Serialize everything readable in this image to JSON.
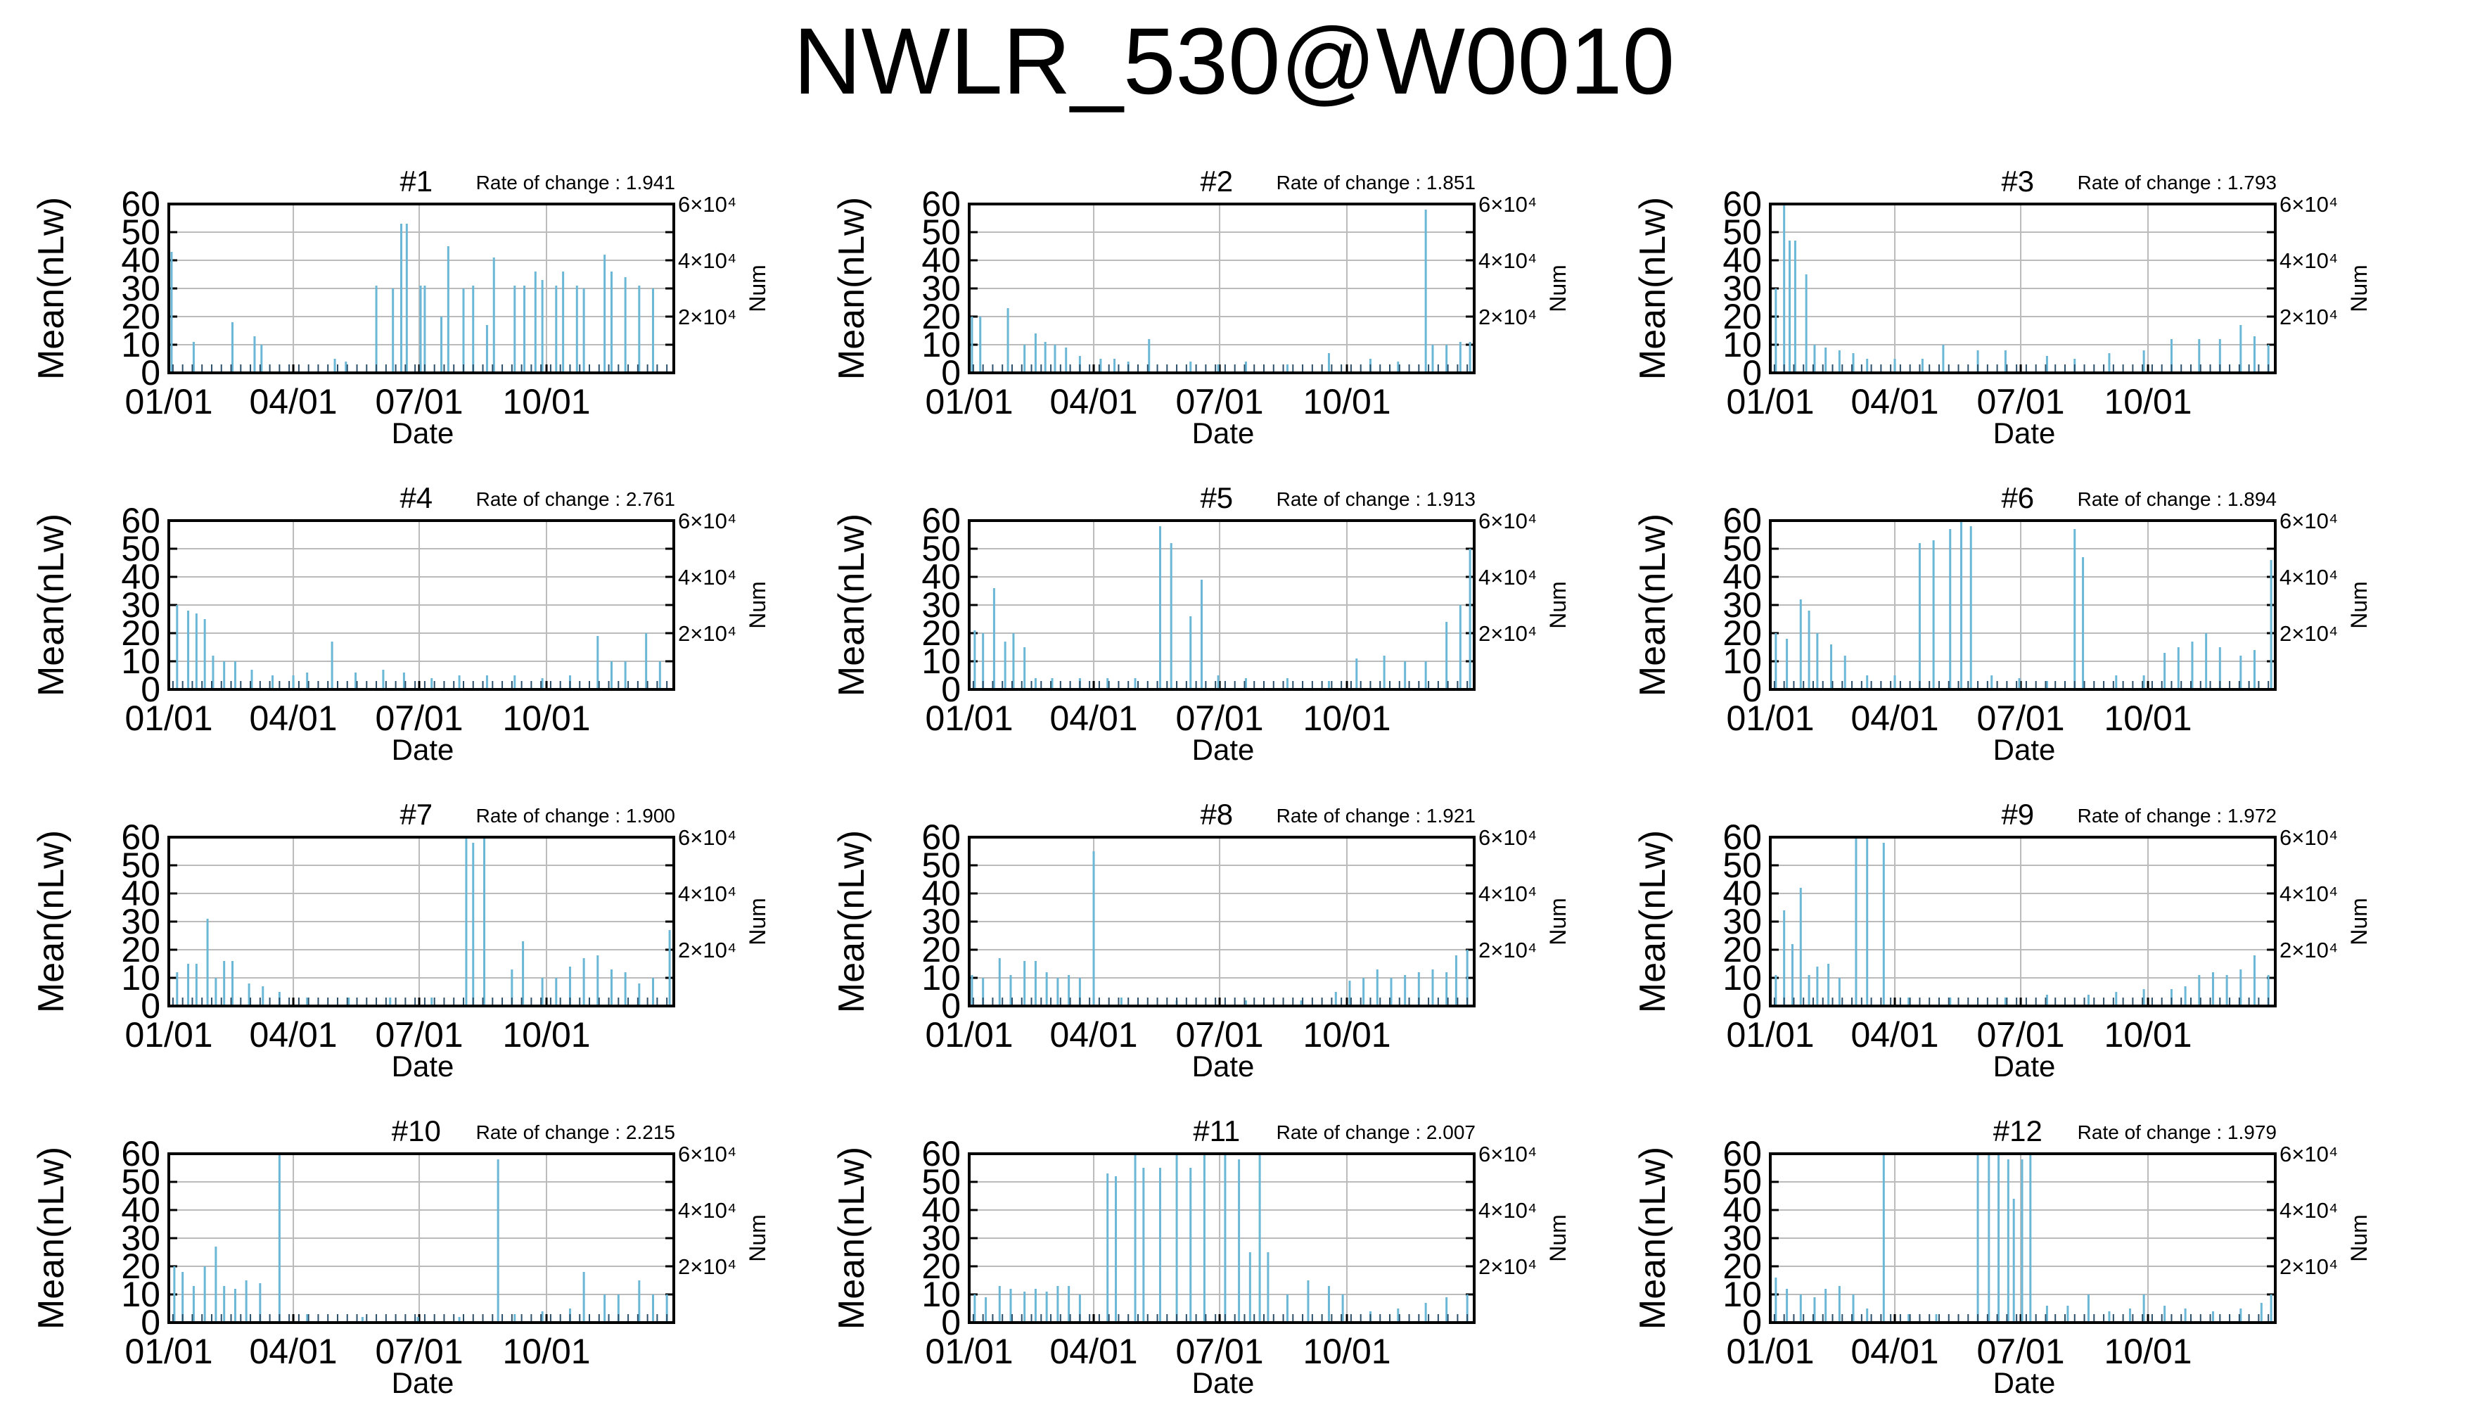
{
  "title": "NWLR_530@W0010",
  "colors": {
    "bar": "#6bb7d6",
    "dark": "#2c4f6a",
    "grid": "#bbbbbb",
    "axis": "#000000"
  },
  "shared": {
    "ylabel": "Mean(nLw)",
    "xlabel": "Date",
    "y2label": "Num",
    "y_ticks": [
      "0",
      "10",
      "20",
      "30",
      "40",
      "50",
      "60"
    ],
    "x_ticks": [
      "01/01",
      "04/01",
      "07/01",
      "10/01"
    ],
    "y2_ticks": [
      "2×10⁴",
      "4×10⁴",
      "6×10⁴"
    ],
    "rate_prefix": "Rate of change : "
  },
  "chart_data": [
    {
      "type": "bar",
      "name": "#1",
      "rate": "1.941",
      "xlim": [
        0,
        365
      ],
      "ylim": [
        0,
        60
      ],
      "y2lim": [
        0,
        60000
      ],
      "spikes": [
        [
          2,
          43
        ],
        [
          18,
          11
        ],
        [
          46,
          18
        ],
        [
          62,
          13
        ],
        [
          67,
          10
        ],
        [
          120,
          5
        ],
        [
          128,
          4
        ],
        [
          150,
          31
        ],
        [
          162,
          30
        ],
        [
          168,
          53
        ],
        [
          172,
          53
        ],
        [
          182,
          31
        ],
        [
          185,
          31
        ],
        [
          197,
          20
        ],
        [
          202,
          45
        ],
        [
          213,
          30
        ],
        [
          220,
          31
        ],
        [
          230,
          17
        ],
        [
          235,
          41
        ],
        [
          250,
          31
        ],
        [
          257,
          31
        ],
        [
          265,
          36
        ],
        [
          270,
          33
        ],
        [
          280,
          31
        ],
        [
          285,
          36
        ],
        [
          295,
          31
        ],
        [
          300,
          30
        ],
        [
          315,
          42
        ],
        [
          320,
          36
        ],
        [
          330,
          34
        ],
        [
          340,
          31
        ],
        [
          350,
          30
        ]
      ]
    },
    {
      "type": "bar",
      "name": "#2",
      "rate": "1.851",
      "xlim": [
        0,
        365
      ],
      "ylim": [
        0,
        60
      ],
      "y2lim": [
        0,
        60000
      ],
      "spikes": [
        [
          2,
          20
        ],
        [
          8,
          20
        ],
        [
          28,
          23
        ],
        [
          40,
          10
        ],
        [
          48,
          14
        ],
        [
          55,
          11
        ],
        [
          62,
          10
        ],
        [
          70,
          9
        ],
        [
          80,
          6
        ],
        [
          95,
          5
        ],
        [
          105,
          5
        ],
        [
          115,
          4
        ],
        [
          130,
          12
        ],
        [
          160,
          4
        ],
        [
          180,
          3
        ],
        [
          200,
          4
        ],
        [
          230,
          3
        ],
        [
          260,
          7
        ],
        [
          290,
          5
        ],
        [
          310,
          4
        ],
        [
          330,
          58
        ],
        [
          335,
          10
        ],
        [
          345,
          10
        ],
        [
          355,
          11
        ],
        [
          362,
          11
        ]
      ]
    },
    {
      "type": "bar",
      "name": "#3",
      "rate": "1.793",
      "xlim": [
        0,
        365
      ],
      "ylim": [
        0,
        60
      ],
      "y2lim": [
        0,
        60000
      ],
      "spikes": [
        [
          4,
          30
        ],
        [
          10,
          60
        ],
        [
          14,
          47
        ],
        [
          18,
          47
        ],
        [
          26,
          35
        ],
        [
          32,
          10
        ],
        [
          40,
          9
        ],
        [
          50,
          8
        ],
        [
          60,
          7
        ],
        [
          70,
          5
        ],
        [
          90,
          5
        ],
        [
          110,
          5
        ],
        [
          125,
          10
        ],
        [
          150,
          8
        ],
        [
          170,
          8
        ],
        [
          200,
          6
        ],
        [
          220,
          5
        ],
        [
          245,
          7
        ],
        [
          270,
          8
        ],
        [
          290,
          12
        ],
        [
          310,
          12
        ],
        [
          325,
          12
        ],
        [
          340,
          17
        ],
        [
          350,
          13
        ],
        [
          360,
          10
        ]
      ]
    },
    {
      "type": "bar",
      "name": "#4",
      "rate": "2.761",
      "xlim": [
        0,
        365
      ],
      "ylim": [
        0,
        60
      ],
      "y2lim": [
        0,
        60000
      ],
      "spikes": [
        [
          6,
          30
        ],
        [
          14,
          28
        ],
        [
          20,
          27
        ],
        [
          26,
          25
        ],
        [
          32,
          12
        ],
        [
          40,
          10
        ],
        [
          48,
          10
        ],
        [
          60,
          7
        ],
        [
          75,
          5
        ],
        [
          90,
          5
        ],
        [
          100,
          6
        ],
        [
          118,
          17
        ],
        [
          135,
          6
        ],
        [
          155,
          7
        ],
        [
          170,
          6
        ],
        [
          190,
          4
        ],
        [
          210,
          5
        ],
        [
          230,
          5
        ],
        [
          250,
          5
        ],
        [
          270,
          4
        ],
        [
          290,
          5
        ],
        [
          310,
          19
        ],
        [
          320,
          10
        ],
        [
          330,
          10
        ],
        [
          345,
          20
        ],
        [
          355,
          10
        ]
      ]
    },
    {
      "type": "bar",
      "name": "#5",
      "rate": "1.913",
      "xlim": [
        0,
        365
      ],
      "ylim": [
        0,
        60
      ],
      "y2lim": [
        0,
        60000
      ],
      "spikes": [
        [
          4,
          21
        ],
        [
          10,
          20
        ],
        [
          18,
          36
        ],
        [
          26,
          17
        ],
        [
          32,
          20
        ],
        [
          40,
          15
        ],
        [
          48,
          4
        ],
        [
          60,
          4
        ],
        [
          80,
          4
        ],
        [
          100,
          4
        ],
        [
          120,
          4
        ],
        [
          138,
          58
        ],
        [
          146,
          52
        ],
        [
          160,
          26
        ],
        [
          168,
          39
        ],
        [
          180,
          5
        ],
        [
          200,
          4
        ],
        [
          230,
          4
        ],
        [
          260,
          3
        ],
        [
          280,
          11
        ],
        [
          300,
          12
        ],
        [
          315,
          10
        ],
        [
          330,
          10
        ],
        [
          345,
          24
        ],
        [
          355,
          30
        ],
        [
          362,
          50
        ]
      ]
    },
    {
      "type": "bar",
      "name": "#6",
      "rate": "1.894",
      "xlim": [
        0,
        365
      ],
      "ylim": [
        0,
        60
      ],
      "y2lim": [
        0,
        60000
      ],
      "spikes": [
        [
          4,
          20
        ],
        [
          12,
          18
        ],
        [
          22,
          32
        ],
        [
          28,
          28
        ],
        [
          34,
          20
        ],
        [
          44,
          16
        ],
        [
          54,
          12
        ],
        [
          70,
          5
        ],
        [
          90,
          5
        ],
        [
          108,
          52
        ],
        [
          118,
          53
        ],
        [
          130,
          57
        ],
        [
          138,
          60
        ],
        [
          145,
          58
        ],
        [
          160,
          5
        ],
        [
          180,
          4
        ],
        [
          200,
          3
        ],
        [
          220,
          57
        ],
        [
          226,
          47
        ],
        [
          250,
          5
        ],
        [
          270,
          5
        ],
        [
          285,
          13
        ],
        [
          295,
          15
        ],
        [
          305,
          17
        ],
        [
          315,
          20
        ],
        [
          325,
          15
        ],
        [
          340,
          12
        ],
        [
          350,
          14
        ],
        [
          362,
          46
        ]
      ]
    },
    {
      "type": "bar",
      "name": "#7",
      "rate": "1.900",
      "xlim": [
        0,
        365
      ],
      "ylim": [
        0,
        60
      ],
      "y2lim": [
        0,
        60000
      ],
      "spikes": [
        [
          6,
          12
        ],
        [
          14,
          15
        ],
        [
          20,
          15
        ],
        [
          28,
          31
        ],
        [
          34,
          10
        ],
        [
          40,
          16
        ],
        [
          46,
          16
        ],
        [
          58,
          8
        ],
        [
          68,
          7
        ],
        [
          80,
          5
        ],
        [
          100,
          3
        ],
        [
          130,
          3
        ],
        [
          160,
          3
        ],
        [
          190,
          3
        ],
        [
          215,
          60
        ],
        [
          220,
          58
        ],
        [
          228,
          60
        ],
        [
          248,
          13
        ],
        [
          256,
          23
        ],
        [
          270,
          10
        ],
        [
          280,
          10
        ],
        [
          290,
          14
        ],
        [
          300,
          17
        ],
        [
          310,
          18
        ],
        [
          320,
          13
        ],
        [
          330,
          12
        ],
        [
          340,
          8
        ],
        [
          350,
          10
        ],
        [
          362,
          27
        ]
      ]
    },
    {
      "type": "bar",
      "name": "#8",
      "rate": "1.921",
      "xlim": [
        0,
        365
      ],
      "ylim": [
        0,
        60
      ],
      "y2lim": [
        0,
        60000
      ],
      "spikes": [
        [
          2,
          11
        ],
        [
          10,
          10
        ],
        [
          22,
          17
        ],
        [
          30,
          11
        ],
        [
          40,
          16
        ],
        [
          48,
          16
        ],
        [
          56,
          12
        ],
        [
          64,
          10
        ],
        [
          72,
          11
        ],
        [
          80,
          10
        ],
        [
          90,
          55
        ],
        [
          110,
          3
        ],
        [
          150,
          2
        ],
        [
          200,
          2
        ],
        [
          240,
          2
        ],
        [
          265,
          5
        ],
        [
          275,
          9
        ],
        [
          285,
          10
        ],
        [
          295,
          13
        ],
        [
          305,
          10
        ],
        [
          315,
          11
        ],
        [
          325,
          12
        ],
        [
          335,
          13
        ],
        [
          345,
          12
        ],
        [
          352,
          18
        ],
        [
          360,
          20
        ]
      ]
    },
    {
      "type": "bar",
      "name": "#9",
      "rate": "1.972",
      "xlim": [
        0,
        365
      ],
      "ylim": [
        0,
        60
      ],
      "y2lim": [
        0,
        60000
      ],
      "spikes": [
        [
          4,
          11
        ],
        [
          10,
          34
        ],
        [
          16,
          22
        ],
        [
          22,
          42
        ],
        [
          28,
          11
        ],
        [
          34,
          14
        ],
        [
          42,
          15
        ],
        [
          50,
          10
        ],
        [
          62,
          60
        ],
        [
          70,
          60
        ],
        [
          82,
          58
        ],
        [
          100,
          3
        ],
        [
          130,
          3
        ],
        [
          170,
          3
        ],
        [
          200,
          4
        ],
        [
          230,
          4
        ],
        [
          250,
          5
        ],
        [
          270,
          6
        ],
        [
          290,
          6
        ],
        [
          300,
          7
        ],
        [
          310,
          11
        ],
        [
          320,
          12
        ],
        [
          330,
          11
        ],
        [
          340,
          13
        ],
        [
          350,
          18
        ],
        [
          360,
          11
        ]
      ]
    },
    {
      "type": "bar",
      "name": "#10",
      "rate": "2.215",
      "xlim": [
        0,
        365
      ],
      "ylim": [
        0,
        60
      ],
      "y2lim": [
        0,
        60000
      ],
      "spikes": [
        [
          4,
          20
        ],
        [
          10,
          18
        ],
        [
          18,
          13
        ],
        [
          26,
          20
        ],
        [
          34,
          27
        ],
        [
          40,
          13
        ],
        [
          48,
          12
        ],
        [
          56,
          15
        ],
        [
          66,
          14
        ],
        [
          80,
          60
        ],
        [
          100,
          3
        ],
        [
          140,
          2
        ],
        [
          180,
          2
        ],
        [
          210,
          2
        ],
        [
          238,
          58
        ],
        [
          250,
          3
        ],
        [
          270,
          4
        ],
        [
          290,
          5
        ],
        [
          300,
          18
        ],
        [
          315,
          10
        ],
        [
          325,
          10
        ],
        [
          340,
          15
        ],
        [
          350,
          10
        ],
        [
          360,
          10
        ]
      ]
    },
    {
      "type": "bar",
      "name": "#11",
      "rate": "2.007",
      "xlim": [
        0,
        365
      ],
      "ylim": [
        0,
        60
      ],
      "y2lim": [
        0,
        60000
      ],
      "spikes": [
        [
          4,
          10
        ],
        [
          12,
          9
        ],
        [
          22,
          13
        ],
        [
          30,
          12
        ],
        [
          40,
          11
        ],
        [
          48,
          12
        ],
        [
          56,
          11
        ],
        [
          64,
          13
        ],
        [
          72,
          13
        ],
        [
          80,
          10
        ],
        [
          100,
          53
        ],
        [
          106,
          52
        ],
        [
          120,
          60
        ],
        [
          126,
          55
        ],
        [
          138,
          55
        ],
        [
          150,
          60
        ],
        [
          160,
          55
        ],
        [
          170,
          60
        ],
        [
          185,
          60
        ],
        [
          195,
          58
        ],
        [
          203,
          25
        ],
        [
          210,
          60
        ],
        [
          216,
          25
        ],
        [
          230,
          10
        ],
        [
          245,
          15
        ],
        [
          260,
          13
        ],
        [
          270,
          10
        ],
        [
          290,
          4
        ],
        [
          310,
          5
        ],
        [
          330,
          7
        ],
        [
          345,
          9
        ],
        [
          360,
          10
        ]
      ]
    },
    {
      "type": "bar",
      "name": "#12",
      "rate": "1.979",
      "xlim": [
        0,
        365
      ],
      "ylim": [
        0,
        60
      ],
      "y2lim": [
        0,
        60000
      ],
      "spikes": [
        [
          4,
          16
        ],
        [
          12,
          12
        ],
        [
          22,
          10
        ],
        [
          32,
          9
        ],
        [
          40,
          12
        ],
        [
          50,
          13
        ],
        [
          60,
          10
        ],
        [
          70,
          5
        ],
        [
          82,
          60
        ],
        [
          100,
          3
        ],
        [
          120,
          3
        ],
        [
          150,
          60
        ],
        [
          158,
          60
        ],
        [
          165,
          60
        ],
        [
          172,
          58
        ],
        [
          176,
          44
        ],
        [
          182,
          58
        ],
        [
          188,
          60
        ],
        [
          200,
          6
        ],
        [
          215,
          6
        ],
        [
          230,
          10
        ],
        [
          245,
          4
        ],
        [
          260,
          5
        ],
        [
          270,
          10
        ],
        [
          285,
          6
        ],
        [
          300,
          5
        ],
        [
          320,
          4
        ],
        [
          340,
          5
        ],
        [
          355,
          7
        ],
        [
          362,
          10
        ]
      ]
    }
  ]
}
